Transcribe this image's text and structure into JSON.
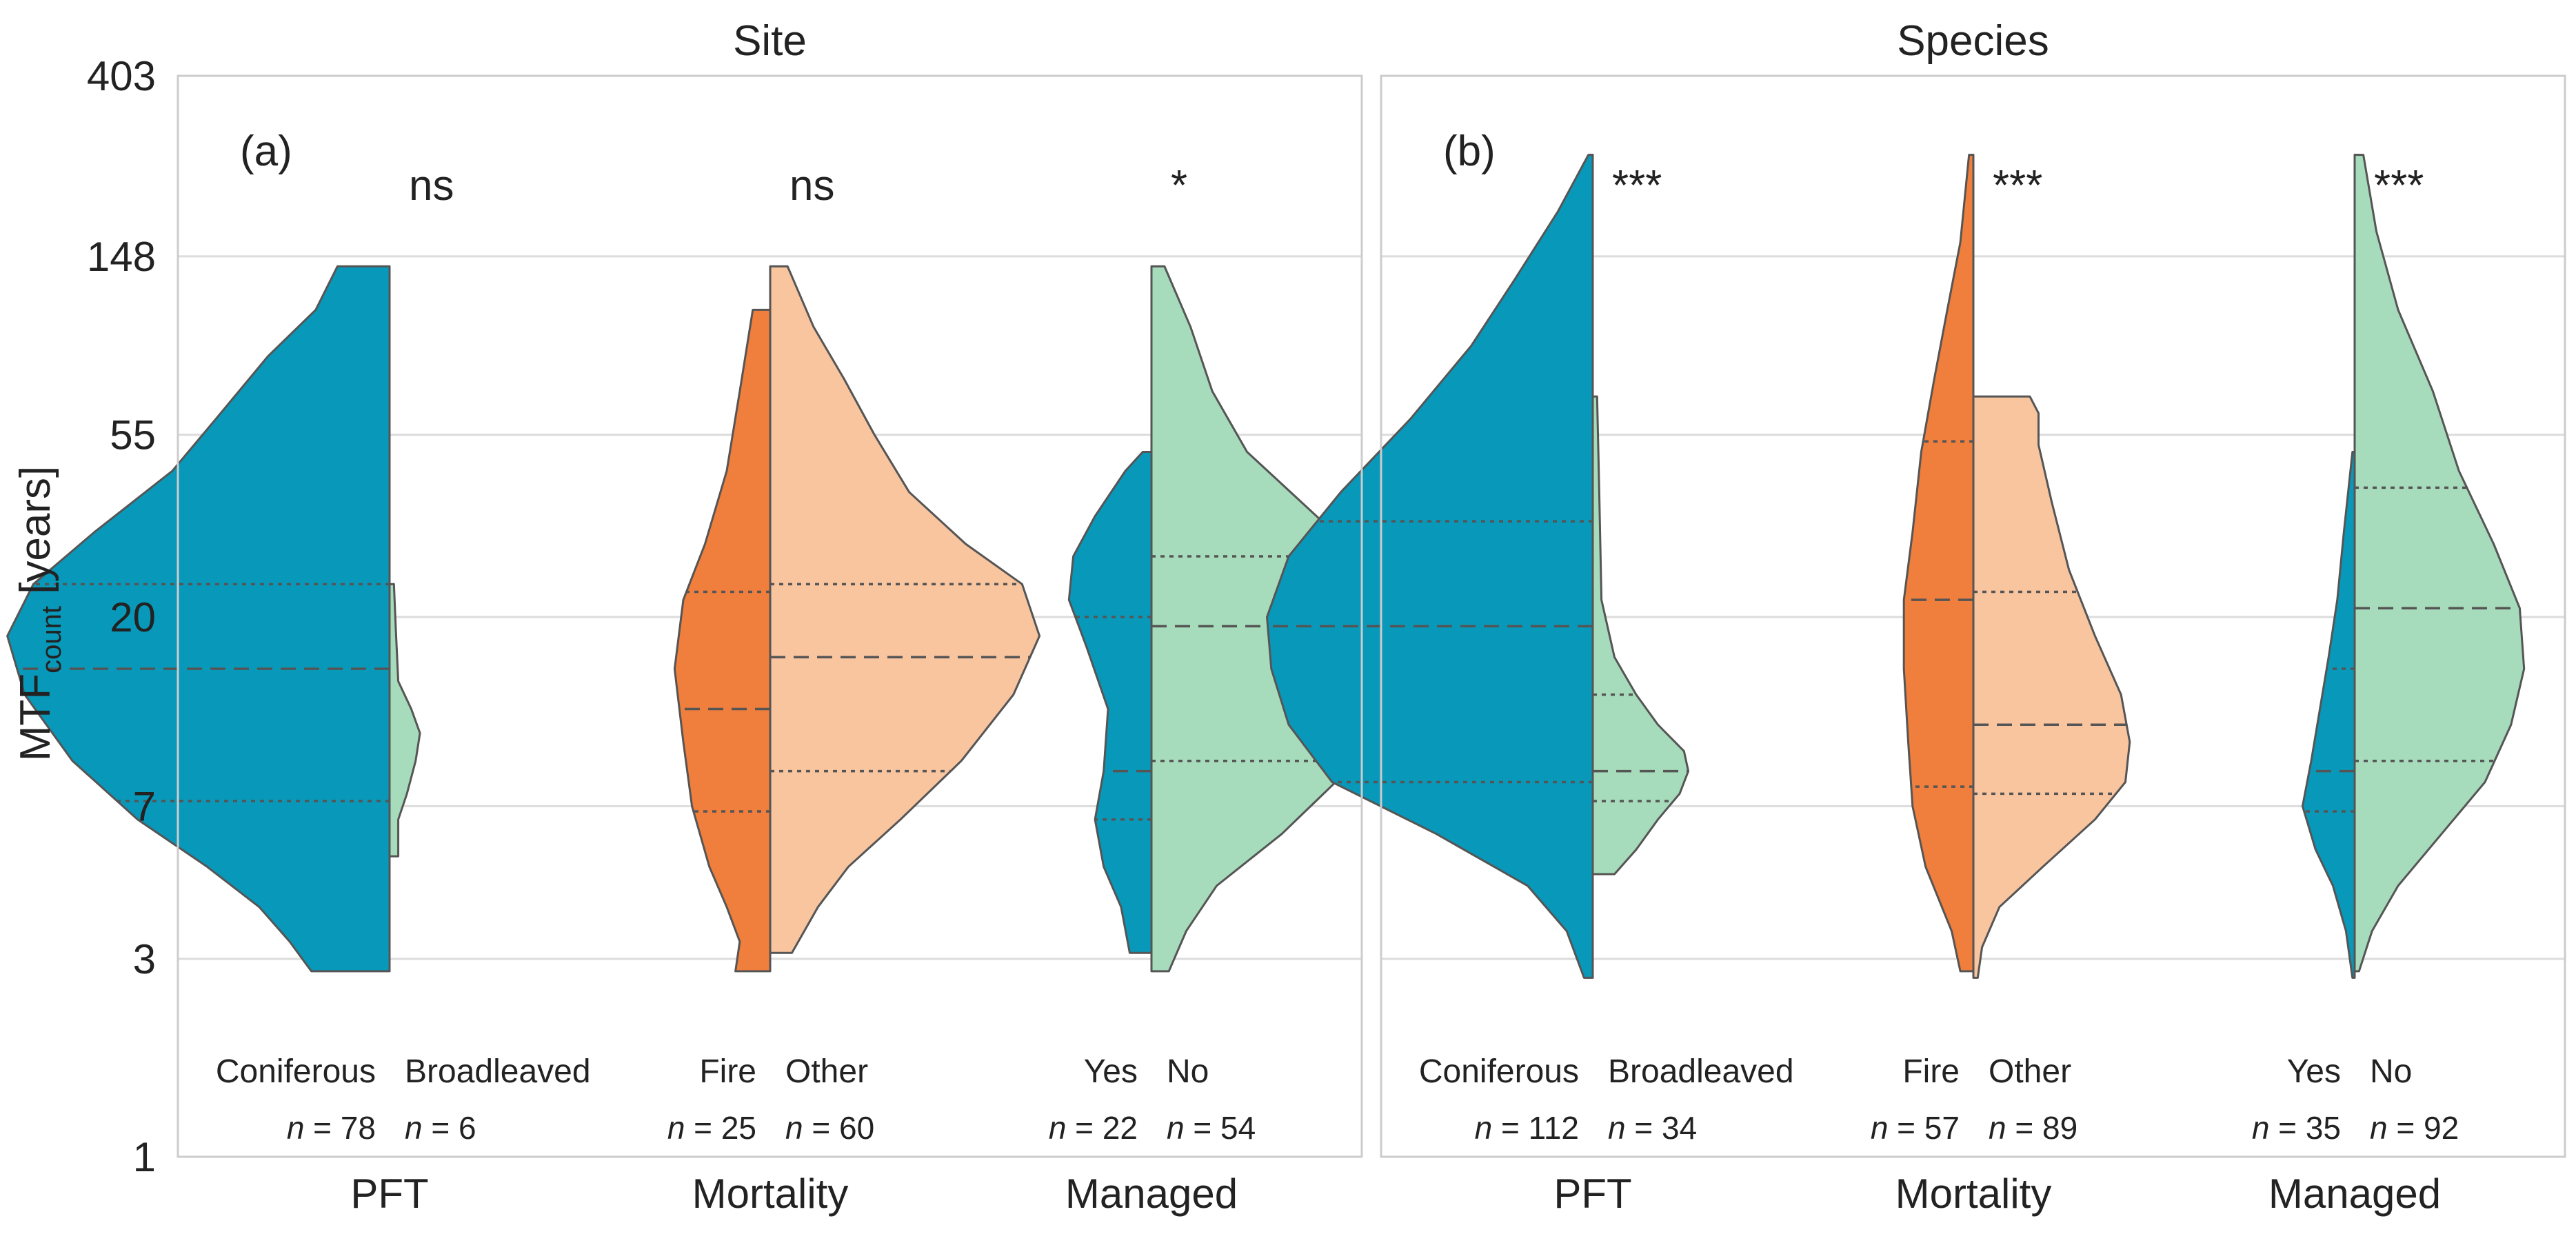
{
  "colors": {
    "teal": "#0899ba",
    "orange": "#f07e3c",
    "peach": "#f9c59f",
    "mint": "#a6dcbb",
    "outline": "#555555",
    "grid": "#dcdcdc",
    "frame": "#cccccc"
  },
  "chart_data": {
    "type": "split-violin",
    "ylabel_main": "MTF",
    "ylabel_sub": "count",
    "ylabel_unit": " [years]",
    "yscale": "log",
    "ylim": [
      1,
      403
    ],
    "yticks": [
      1,
      3,
      7,
      20,
      55,
      148,
      403
    ],
    "ytick_labels": [
      "1",
      "3",
      "7",
      "20",
      "55",
      "148",
      "403"
    ],
    "grid": true,
    "panels": [
      {
        "title": "Site",
        "letter": "(a)",
        "groups": [
          {
            "label": "PFT",
            "sig": "ns",
            "left": {
              "category": "Coniferous",
              "n": "n = 78",
              "color": "teal",
              "ymin": 2.8,
              "ymax": 140,
              "q1": 7.2,
              "median": 15,
              "q3": 24,
              "profile": [
                [
                  2.8,
                  0.18
                ],
                [
                  3.3,
                  0.23
                ],
                [
                  4,
                  0.3
                ],
                [
                  5,
                  0.42
                ],
                [
                  6.5,
                  0.58
                ],
                [
                  9,
                  0.73
                ],
                [
                  13,
                  0.84
                ],
                [
                  18,
                  0.88
                ],
                [
                  24,
                  0.82
                ],
                [
                  32,
                  0.68
                ],
                [
                  45,
                  0.5
                ],
                [
                  60,
                  0.4
                ],
                [
                  85,
                  0.28
                ],
                [
                  110,
                  0.17
                ],
                [
                  140,
                  0.12
                ]
              ]
            },
            "right": {
              "category": "Broadleaved",
              "n": "n = 6",
              "color": "mint",
              "ymin": 5.3,
              "ymax": 24,
              "profile": [
                [
                  5.3,
                  0.02
                ],
                [
                  6.5,
                  0.02
                ],
                [
                  7.5,
                  0.04
                ],
                [
                  9,
                  0.06
                ],
                [
                  10.5,
                  0.07
                ],
                [
                  12,
                  0.05
                ],
                [
                  14,
                  0.02
                ],
                [
                  18,
                  0.015
                ],
                [
                  24,
                  0.01
                ]
              ]
            }
          },
          {
            "label": "Mortality",
            "sig": "ns",
            "left": {
              "category": "Fire",
              "n": "n = 25",
              "color": "orange",
              "ymin": 2.8,
              "ymax": 110,
              "q1": 6.8,
              "median": 12,
              "q3": 23,
              "profile": [
                [
                  2.8,
                  0.08
                ],
                [
                  3.3,
                  0.07
                ],
                [
                  4,
                  0.1
                ],
                [
                  5,
                  0.14
                ],
                [
                  7,
                  0.18
                ],
                [
                  10,
                  0.2
                ],
                [
                  15,
                  0.22
                ],
                [
                  22,
                  0.2
                ],
                [
                  30,
                  0.15
                ],
                [
                  45,
                  0.1
                ],
                [
                  70,
                  0.07
                ],
                [
                  110,
                  0.04
                ]
              ]
            },
            "right": {
              "category": "Other",
              "n": "n = 60",
              "color": "peach",
              "ymin": 3.1,
              "ymax": 140,
              "q1": 8.5,
              "median": 16,
              "q3": 24,
              "profile": [
                [
                  3.1,
                  0.05
                ],
                [
                  4,
                  0.11
                ],
                [
                  5,
                  0.18
                ],
                [
                  6.5,
                  0.3
                ],
                [
                  9,
                  0.44
                ],
                [
                  13,
                  0.56
                ],
                [
                  18,
                  0.62
                ],
                [
                  24,
                  0.58
                ],
                [
                  30,
                  0.45
                ],
                [
                  40,
                  0.32
                ],
                [
                  55,
                  0.24
                ],
                [
                  75,
                  0.17
                ],
                [
                  100,
                  0.1
                ],
                [
                  140,
                  0.04
                ]
              ]
            }
          },
          {
            "label": "Managed",
            "sig": "*",
            "left": {
              "category": "Yes",
              "n": "n = 22",
              "color": "teal",
              "ymin": 3.1,
              "ymax": 50,
              "q1": 6.5,
              "median": 8.5,
              "q3": 20,
              "profile": [
                [
                  3.1,
                  0.05
                ],
                [
                  4,
                  0.07
                ],
                [
                  5,
                  0.11
                ],
                [
                  6.5,
                  0.13
                ],
                [
                  8.5,
                  0.11
                ],
                [
                  12,
                  0.1
                ],
                [
                  17,
                  0.15
                ],
                [
                  22,
                  0.19
                ],
                [
                  28,
                  0.18
                ],
                [
                  35,
                  0.13
                ],
                [
                  45,
                  0.06
                ],
                [
                  50,
                  0.02
                ]
              ]
            },
            "right": {
              "category": "No",
              "n": "n = 54",
              "color": "mint",
              "ymin": 2.8,
              "ymax": 140,
              "q1": 9,
              "median": 19,
              "q3": 28,
              "profile": [
                [
                  2.8,
                  0.04
                ],
                [
                  3.5,
                  0.08
                ],
                [
                  4.5,
                  0.15
                ],
                [
                  6,
                  0.3
                ],
                [
                  8.5,
                  0.45
                ],
                [
                  13,
                  0.56
                ],
                [
                  19,
                  0.6
                ],
                [
                  26,
                  0.52
                ],
                [
                  35,
                  0.38
                ],
                [
                  50,
                  0.22
                ],
                [
                  70,
                  0.14
                ],
                [
                  100,
                  0.09
                ],
                [
                  140,
                  0.03
                ]
              ]
            }
          }
        ]
      },
      {
        "title": "Species",
        "letter": "(b)",
        "groups": [
          {
            "label": "PFT",
            "sig": "***",
            "left": {
              "category": "Coniferous",
              "n": "n = 112",
              "color": "teal",
              "ymin": 2.7,
              "ymax": 260,
              "q1": 8,
              "median": 19,
              "q3": 34,
              "profile": [
                [
                  2.7,
                  0.02
                ],
                [
                  3.5,
                  0.06
                ],
                [
                  4.5,
                  0.15
                ],
                [
                  6,
                  0.36
                ],
                [
                  8,
                  0.6
                ],
                [
                  11,
                  0.7
                ],
                [
                  15,
                  0.74
                ],
                [
                  20,
                  0.75
                ],
                [
                  28,
                  0.7
                ],
                [
                  40,
                  0.58
                ],
                [
                  60,
                  0.42
                ],
                [
                  90,
                  0.28
                ],
                [
                  130,
                  0.18
                ],
                [
                  190,
                  0.08
                ],
                [
                  260,
                  0.01
                ]
              ]
            },
            "right": {
              "category": "Broadleaved",
              "n": "n = 34",
              "color": "mint",
              "ymin": 4.8,
              "ymax": 68,
              "q1": 7.2,
              "median": 8.5,
              "q3": 13,
              "profile": [
                [
                  4.8,
                  0.05
                ],
                [
                  5.5,
                  0.1
                ],
                [
                  6.5,
                  0.15
                ],
                [
                  7.5,
                  0.2
                ],
                [
                  8.5,
                  0.22
                ],
                [
                  9.5,
                  0.21
                ],
                [
                  11,
                  0.15
                ],
                [
                  13,
                  0.1
                ],
                [
                  16,
                  0.05
                ],
                [
                  22,
                  0.02
                ],
                [
                  40,
                  0.015
                ],
                [
                  68,
                  0.01
                ]
              ]
            }
          },
          {
            "label": "Mortality",
            "sig": "***",
            "left": {
              "category": "Fire",
              "n": "n = 57",
              "color": "orange",
              "ymin": 2.8,
              "ymax": 260,
              "q1": 7.8,
              "median": 22,
              "q3": 53,
              "profile": [
                [
                  2.8,
                  0.03
                ],
                [
                  3.5,
                  0.05
                ],
                [
                  5,
                  0.11
                ],
                [
                  7,
                  0.14
                ],
                [
                  10,
                  0.15
                ],
                [
                  15,
                  0.16
                ],
                [
                  22,
                  0.16
                ],
                [
                  32,
                  0.14
                ],
                [
                  50,
                  0.12
                ],
                [
                  75,
                  0.09
                ],
                [
                  110,
                  0.06
                ],
                [
                  160,
                  0.03
                ],
                [
                  260,
                  0.01
                ]
              ]
            },
            "right": {
              "category": "Other",
              "n": "n = 89",
              "color": "peach",
              "ymin": 2.7,
              "ymax": 68,
              "q1": 7.5,
              "median": 11,
              "q3": 23,
              "profile": [
                [
                  2.7,
                  0.01
                ],
                [
                  3.2,
                  0.02
                ],
                [
                  4,
                  0.06
                ],
                [
                  5,
                  0.16
                ],
                [
                  6.5,
                  0.28
                ],
                [
                  8,
                  0.35
                ],
                [
                  10,
                  0.36
                ],
                [
                  13,
                  0.34
                ],
                [
                  18,
                  0.28
                ],
                [
                  26,
                  0.22
                ],
                [
                  38,
                  0.18
                ],
                [
                  52,
                  0.15
                ],
                [
                  62,
                  0.15
                ],
                [
                  68,
                  0.13
                ]
              ]
            }
          },
          {
            "label": "Managed",
            "sig": "***",
            "left": {
              "category": "Yes",
              "n": "n = 35",
              "color": "teal",
              "ymin": 2.7,
              "ymax": 50,
              "q1": 6.8,
              "median": 8.5,
              "q3": 15,
              "profile": [
                [
                  2.7,
                  0.005
                ],
                [
                  3.5,
                  0.02
                ],
                [
                  4.5,
                  0.05
                ],
                [
                  5.5,
                  0.09
                ],
                [
                  7,
                  0.12
                ],
                [
                  9,
                  0.1
                ],
                [
                  12,
                  0.08
                ],
                [
                  16,
                  0.06
                ],
                [
                  22,
                  0.04
                ],
                [
                  32,
                  0.025
                ],
                [
                  50,
                  0.005
                ]
              ]
            },
            "right": {
              "category": "No",
              "n": "n = 92",
              "color": "mint",
              "ymin": 2.8,
              "ymax": 260,
              "q1": 9,
              "median": 21,
              "q3": 41,
              "profile": [
                [
                  2.8,
                  0.01
                ],
                [
                  3.5,
                  0.04
                ],
                [
                  4.5,
                  0.1
                ],
                [
                  6,
                  0.2
                ],
                [
                  8,
                  0.3
                ],
                [
                  11,
                  0.36
                ],
                [
                  15,
                  0.39
                ],
                [
                  21,
                  0.38
                ],
                [
                  30,
                  0.32
                ],
                [
                  45,
                  0.24
                ],
                [
                  70,
                  0.18
                ],
                [
                  110,
                  0.1
                ],
                [
                  170,
                  0.05
                ],
                [
                  260,
                  0.02
                ]
              ]
            }
          }
        ]
      }
    ]
  }
}
